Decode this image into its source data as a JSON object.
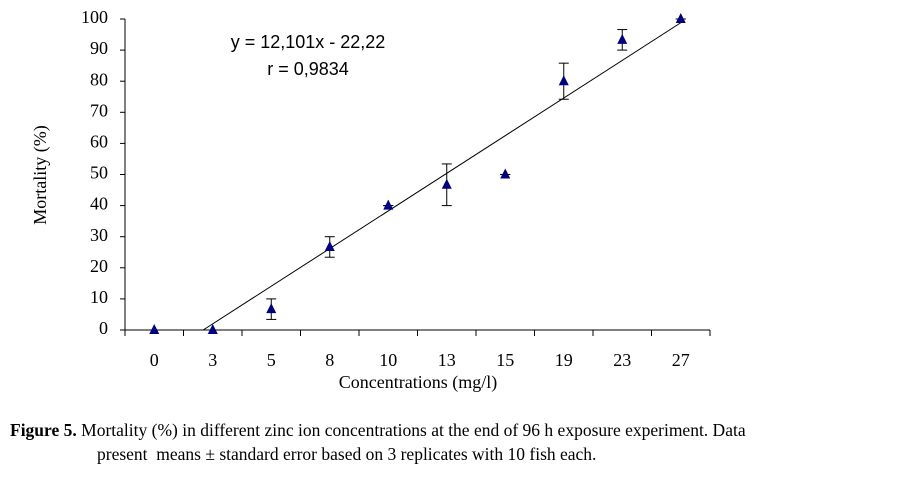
{
  "chart_data": {
    "type": "scatter",
    "x_label": "Concentrations (mg/l)",
    "y_label": "Mortality (%)",
    "categories": [
      "0",
      "3",
      "5",
      "8",
      "10",
      "13",
      "15",
      "19",
      "23",
      "27"
    ],
    "series": [
      {
        "name": "Mortality",
        "color": "#00007f",
        "values": [
          0,
          0,
          6.7,
          26.7,
          40,
          46.7,
          50,
          80,
          93.3,
          100
        ],
        "errors": [
          0,
          0,
          3.3,
          3.3,
          0,
          6.7,
          0,
          5.8,
          3.3,
          0
        ]
      }
    ],
    "trendline": {
      "slope": 12.101,
      "intercept": -22.22,
      "label": "y = 12,101x - 22,22",
      "r_label": "r = 0,9834"
    },
    "ylim": [
      0,
      100
    ],
    "yticks": [
      0,
      10,
      20,
      30,
      40,
      50,
      60,
      70,
      80,
      90,
      100
    ],
    "grid": false
  },
  "caption": {
    "label": "Figure 5.",
    "lines": [
      "Mortality (%) in different zinc ion concentrations at the end of 96 h exposure experiment. Data",
      "present  means ± standard error based on 3 replicates with 10 fish each."
    ]
  }
}
